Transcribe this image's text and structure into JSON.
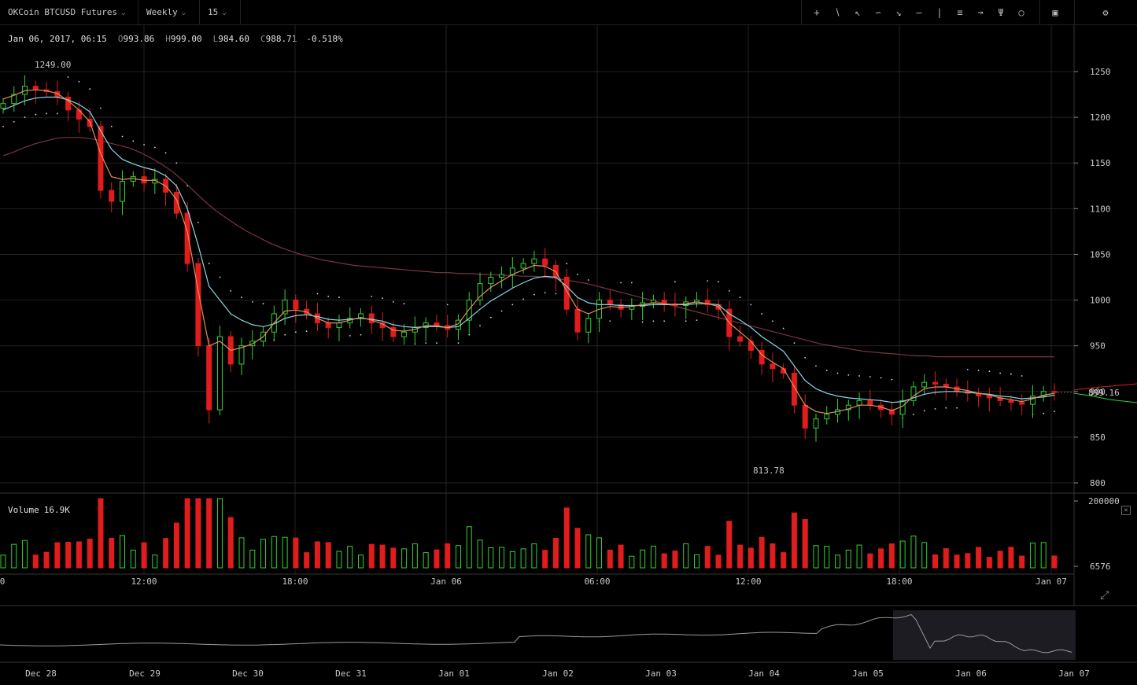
{
  "toolbar": {
    "symbol": "OKCoin BTCUSD Futures",
    "range": "Weekly",
    "interval": "15",
    "tools": [
      "crosshair-icon",
      "trendline-icon",
      "ray-icon",
      "curve-icon",
      "arrow-icon",
      "horizontal-line-icon",
      "vertical-line-icon",
      "fib-icon",
      "fan-icon",
      "pitchfork-icon",
      "circle-icon"
    ],
    "right_tools": [
      "indicators-icon",
      "settings-icon"
    ]
  },
  "ohlc": {
    "date": "Jan 06, 2017, 06:15",
    "o_label": "O",
    "o": "993.86",
    "h_label": "H",
    "h": "999.00",
    "l_label": "L",
    "l": "984.60",
    "c_label": "C",
    "c": "988.71",
    "change": "-0.518%"
  },
  "volume_panel": {
    "label": "Volume",
    "value": "16.9K",
    "close": "✕"
  },
  "colors": {
    "up": "#32d232",
    "down": "#e01c1c",
    "ema_fast": "#e0905a",
    "ema_slow": "#8ad6e6",
    "sma_long": "#7d3540",
    "sar": "#d8d8d8",
    "grid": "#222222"
  },
  "chart_data": [
    {
      "type": "candlestick",
      "title": "OKCoin BTCUSD Futures",
      "price_axis": {
        "ticks": [
          "1250",
          "1200",
          "1150",
          "1100",
          "1050",
          "1000",
          "950",
          "900",
          "850",
          "800"
        ],
        "ylim": [
          790,
          1285
        ]
      },
      "time_axis": {
        "ticks": [
          "0",
          "12:00",
          "18:00",
          "Jan 06",
          "06:00",
          "12:00",
          "18:00",
          "Jan 07"
        ]
      },
      "last_price": "899.16",
      "annotations": [
        {
          "label": "1249.00",
          "value": 1249.0
        },
        {
          "label": "813.78",
          "value": 813.78
        }
      ],
      "price_path": [
        1215,
        1225,
        1234,
        1230,
        1228,
        1222,
        1208,
        1198,
        1190,
        1120,
        1108,
        1130,
        1135,
        1128,
        1132,
        1118,
        1095,
        1040,
        950,
        880,
        960,
        930,
        950,
        955,
        965,
        985,
        1000,
        990,
        985,
        975,
        970,
        975,
        980,
        985,
        975,
        970,
        960,
        965,
        970,
        975,
        972,
        968,
        978,
        1000,
        1018,
        1025,
        1028,
        1035,
        1040,
        1045,
        1038,
        1025,
        990,
        965,
        980,
        1000,
        995,
        990,
        993,
        997,
        1000,
        996,
        994,
        998,
        1000,
        995,
        990,
        960,
        955,
        945,
        930,
        925,
        920,
        885,
        860,
        870,
        875,
        880,
        885,
        890,
        885,
        880,
        875,
        890,
        905,
        910,
        908,
        905,
        900,
        898,
        895,
        893,
        890,
        888,
        886,
        895,
        900,
        899
      ],
      "ema_fast": [
        1220,
        1224,
        1229,
        1230,
        1229,
        1226,
        1218,
        1208,
        1195,
        1160,
        1135,
        1132,
        1133,
        1131,
        1131,
        1125,
        1110,
        1075,
        1010,
        950,
        955,
        945,
        948,
        952,
        960,
        975,
        988,
        989,
        987,
        980,
        975,
        975,
        978,
        981,
        978,
        974,
        967,
        966,
        968,
        972,
        972,
        970,
        974,
        990,
        1004,
        1014,
        1021,
        1028,
        1033,
        1038,
        1037,
        1031,
        1010,
        990,
        985,
        990,
        993,
        992,
        993,
        995,
        997,
        996,
        995,
        996,
        998,
        996,
        993,
        975,
        965,
        955,
        940,
        932,
        925,
        905,
        885,
        878,
        876,
        878,
        881,
        885,
        885,
        883,
        879,
        884,
        895,
        903,
        905,
        905,
        903,
        901,
        898,
        896,
        893,
        891,
        889,
        892,
        896,
        898
      ],
      "ema_slow": [
        1208,
        1213,
        1218,
        1221,
        1222,
        1222,
        1219,
        1214,
        1206,
        1185,
        1165,
        1154,
        1149,
        1145,
        1142,
        1136,
        1125,
        1100,
        1060,
        1015,
        1000,
        985,
        978,
        973,
        971,
        974,
        980,
        983,
        984,
        982,
        979,
        978,
        979,
        980,
        979,
        977,
        973,
        971,
        970,
        971,
        971,
        970,
        971,
        980,
        990,
        999,
        1006,
        1013,
        1019,
        1024,
        1026,
        1025,
        1015,
        1003,
        997,
        995,
        995,
        994,
        994,
        994,
        995,
        995,
        995,
        995,
        996,
        996,
        995,
        985,
        978,
        970,
        960,
        952,
        944,
        928,
        912,
        903,
        898,
        895,
        893,
        892,
        891,
        890,
        888,
        889,
        893,
        897,
        899,
        900,
        900,
        899,
        898,
        897,
        895,
        894,
        892,
        893,
        894,
        896
      ],
      "sma_long": [
        1158,
        1162,
        1167,
        1171,
        1174,
        1177,
        1178,
        1178,
        1177,
        1175,
        1172,
        1169,
        1166,
        1161,
        1155,
        1148,
        1140,
        1130,
        1119,
        1108,
        1098,
        1090,
        1082,
        1075,
        1069,
        1063,
        1058,
        1054,
        1050,
        1047,
        1044,
        1042,
        1040,
        1038,
        1037,
        1036,
        1035,
        1034,
        1033,
        1032,
        1031,
        1030,
        1030,
        1029,
        1029,
        1028,
        1028,
        1027,
        1027,
        1026,
        1026,
        1025,
        1024,
        1022,
        1020,
        1018,
        1015,
        1012,
        1009,
        1006,
        1003,
        1000,
        997,
        994,
        991,
        988,
        985,
        982,
        979,
        976,
        973,
        970,
        967,
        964,
        961,
        958,
        955,
        952,
        950,
        948,
        946,
        944,
        943,
        942,
        941,
        940,
        939,
        939,
        938,
        938,
        938,
        938,
        938,
        938,
        938,
        938,
        938,
        938,
        938,
        938
      ]
    },
    {
      "type": "bar",
      "title": "Volume",
      "value_axis": {
        "ticks": [
          "200000",
          "6576"
        ],
        "ylim": [
          0,
          200000
        ]
      },
      "max_visible": 200000
    },
    {
      "type": "area",
      "title": "navigator",
      "time_axis": {
        "ticks": [
          "Dec 28",
          "Dec 29",
          "Dec 30",
          "Dec 31",
          "Jan 01",
          "Jan 02",
          "Jan 03",
          "Jan 04",
          "Jan 05",
          "Jan 06",
          "Jan 07"
        ]
      }
    }
  ]
}
